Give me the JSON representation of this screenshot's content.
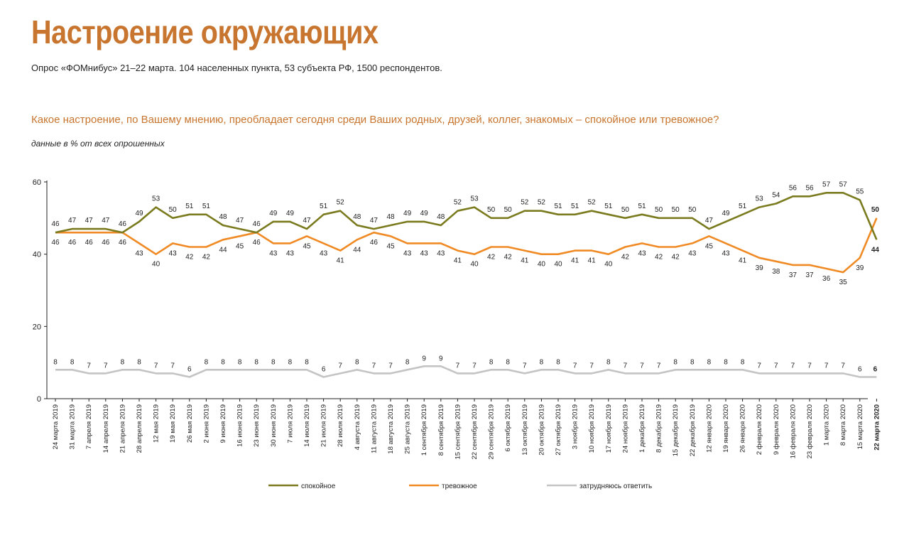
{
  "header": {
    "title": "Настроение окружающих",
    "subtitle": "Опрос «ФОМнибус» 21–22 марта. 104 населенных пункта, 53 субъекта РФ, 1500 респондентов.",
    "question": "Какое настроение, по Вашему мнению, преобладает сегодня среди Ваших родных, друзей, коллег, знакомых – спокойное или тревожное?",
    "note": "данные в % от всех опрошенных"
  },
  "chart_data": {
    "type": "line",
    "ylim": [
      0,
      60
    ],
    "yticks": [
      0,
      20,
      40,
      60
    ],
    "grid": false,
    "legend_position": "bottom",
    "categories": [
      "24 марта 2019",
      "31 марта 2019",
      "7 апреля 2019",
      "14 апреля 2019",
      "21 апреля 2019",
      "28 апреля 2019",
      "12 мая 2019",
      "19 мая 2019",
      "26 мая 2019",
      "2 июня 2019",
      "9 июня 2019",
      "16 июня 2019",
      "23 июня 2019",
      "30 июня 2019",
      "7 июля 2019",
      "14 июля 2019",
      "21 июля 2019",
      "28 июля 2019",
      "4 августа 2019",
      "11 августа 2019",
      "18 августа 2019",
      "25 августа 2019",
      "1 сентября 2019",
      "8 сентября 2019",
      "15 сентября 2019",
      "22 сентября 2019",
      "29 сентября 2019",
      "6 октября 2019",
      "13 октября 2019",
      "20 октября 2019",
      "27 октября 2019",
      "3 ноября 2019",
      "10 ноября 2019",
      "17 ноября 2019",
      "24 ноября 2019",
      "1 декабря 2019",
      "8 декабря 2019",
      "15 декабря 2019",
      "22 декабря 2019",
      "12 января 2020",
      "19 января 2020",
      "26 января 2020",
      "2 февраля 2020",
      "9 февраля 2020",
      "16 февраля 2020",
      "23 февраля 2020",
      "1 марта 2020",
      "8 марта 2020",
      "15 марта 2020",
      "22 марта 2020"
    ],
    "series": [
      {
        "name": "спокойное",
        "color": "#7a7a1e",
        "values": [
          46,
          47,
          47,
          47,
          46,
          49,
          53,
          50,
          51,
          51,
          48,
          47,
          46,
          49,
          49,
          47,
          51,
          52,
          48,
          47,
          48,
          49,
          49,
          48,
          52,
          53,
          50,
          50,
          52,
          52,
          51,
          51,
          52,
          51,
          50,
          51,
          50,
          50,
          50,
          47,
          49,
          51,
          53,
          54,
          56,
          56,
          57,
          57,
          55,
          44
        ]
      },
      {
        "name": "тревожное",
        "color": "#f08a24",
        "values": [
          46,
          46,
          46,
          46,
          46,
          43,
          40,
          43,
          42,
          42,
          44,
          45,
          46,
          43,
          43,
          45,
          43,
          41,
          44,
          46,
          45,
          43,
          43,
          43,
          41,
          40,
          42,
          42,
          41,
          40,
          40,
          41,
          41,
          40,
          42,
          43,
          42,
          42,
          43,
          45,
          43,
          41,
          39,
          38,
          37,
          37,
          36,
          35,
          39,
          50
        ]
      },
      {
        "name": "затрудняюсь ответить",
        "color": "#c4c4c4",
        "values": [
          8,
          8,
          7,
          7,
          8,
          8,
          7,
          7,
          6,
          8,
          8,
          8,
          8,
          8,
          8,
          8,
          6,
          7,
          8,
          7,
          7,
          8,
          9,
          9,
          7,
          7,
          8,
          8,
          7,
          8,
          8,
          7,
          7,
          8,
          7,
          7,
          7,
          8,
          8,
          8,
          8,
          8,
          7,
          7,
          7,
          7,
          7,
          7,
          6,
          6
        ]
      }
    ]
  }
}
